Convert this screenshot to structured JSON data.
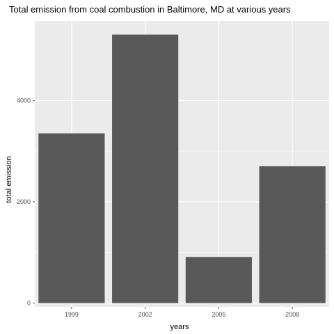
{
  "chart_data": {
    "type": "bar",
    "title": "Total emission from coal combustion in Baltimore, MD at various years",
    "xlabel": "years",
    "ylabel": "total emission",
    "categories": [
      "1999",
      "2002",
      "2005",
      "2008"
    ],
    "values": [
      3350,
      5300,
      910,
      2700
    ],
    "ylim": [
      -75,
      5570
    ],
    "yticks": [
      0,
      2000,
      4000
    ],
    "ytick_labels": [
      "0",
      "2000",
      "4000"
    ],
    "grid": true,
    "colors": {
      "panel_background": "#ebebeb",
      "grid_major": "#ffffff",
      "bar_fill": "#595959"
    }
  }
}
